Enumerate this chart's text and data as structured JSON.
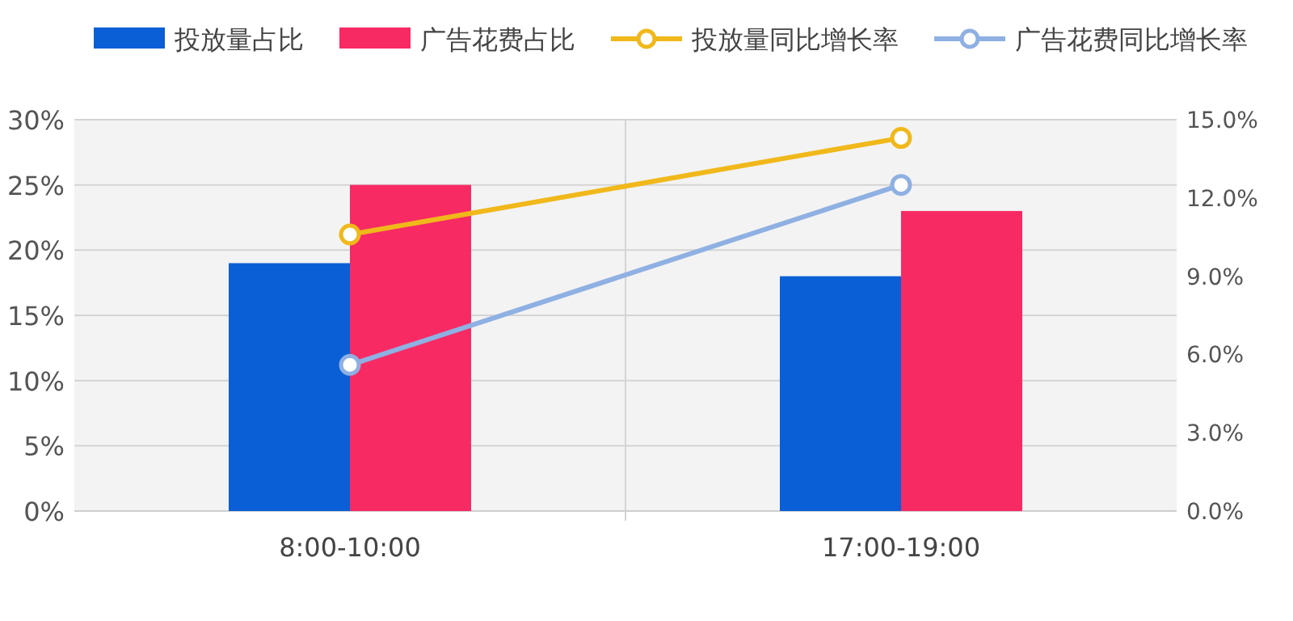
{
  "chart_data": {
    "type": "bar",
    "categories": [
      "8:00-10:00",
      "17:00-19:00"
    ],
    "series": [
      {
        "name": "投放量占比",
        "color": "#0a5fd6",
        "values": [
          19,
          18
        ]
      },
      {
        "name": "广告花费占比",
        "color": "#f72a64",
        "values": [
          25,
          23
        ]
      },
      {
        "name": "投放量同比增长率",
        "color": "#f0b81a",
        "values": [
          10.6,
          14.3
        ],
        "type": "line",
        "axis": "y2"
      },
      {
        "name": "广告花费同比增长率",
        "color": "#8fb0e2",
        "values": [
          5.6,
          12.5
        ],
        "type": "line",
        "axis": "y2"
      }
    ],
    "ylim": [
      0,
      30
    ],
    "yticks": [
      {
        "value": 0,
        "label": "0%"
      },
      {
        "value": 5,
        "label": "5%"
      },
      {
        "value": 10,
        "label": "10%"
      },
      {
        "value": 15,
        "label": "15%"
      },
      {
        "value": 20,
        "label": "20%"
      },
      {
        "value": 25,
        "label": "25%"
      },
      {
        "value": 30,
        "label": "30%"
      }
    ],
    "y2lim": [
      0,
      15
    ],
    "y2ticks": [
      {
        "value": 0,
        "label": "0.0%"
      },
      {
        "value": 3,
        "label": "3.0%"
      },
      {
        "value": 6,
        "label": "6.0%"
      },
      {
        "value": 9,
        "label": "9.0%"
      },
      {
        "value": 12,
        "label": "12.0%"
      },
      {
        "value": 15,
        "label": "15.0%"
      }
    ],
    "grid": "y",
    "legend": "top",
    "marker": "circle"
  }
}
